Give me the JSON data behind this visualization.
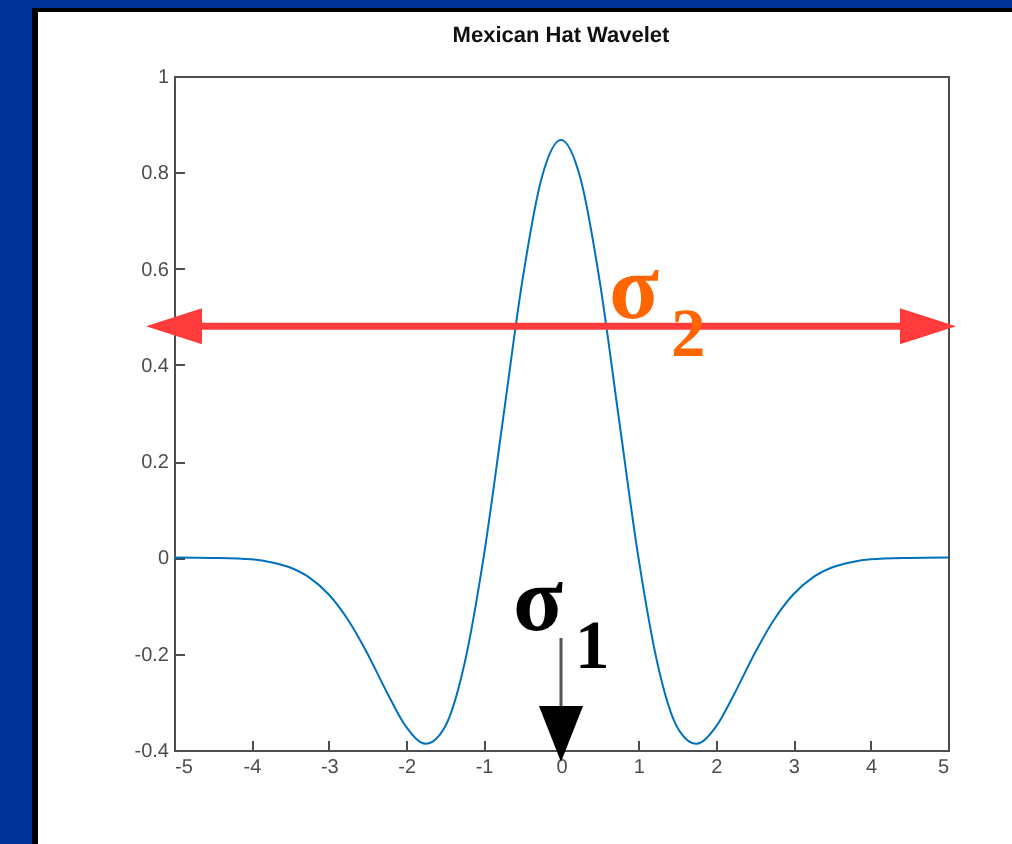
{
  "chart_data": {
    "type": "line",
    "title": "Mexican Hat Wavelet",
    "x": [
      -5,
      -4.5,
      -4,
      -3.75,
      -3.5,
      -3.25,
      -3,
      -2.75,
      -2.5,
      -2.25,
      -2,
      -1.75,
      -1.5,
      -1.25,
      -1,
      -0.75,
      -0.5,
      -0.25,
      0,
      0.25,
      0.5,
      0.75,
      1,
      1.25,
      1.5,
      1.75,
      2,
      2.25,
      2.5,
      2.75,
      3,
      3.25,
      3.5,
      3.75,
      4,
      4.5,
      5
    ],
    "series": [
      {
        "color": "#0072bd",
        "values": [
          0,
          -0.001,
          -0.004,
          -0.01,
          -0.021,
          -0.042,
          -0.077,
          -0.13,
          -0.2,
          -0.28,
          -0.352,
          -0.387,
          -0.352,
          -0.223,
          0,
          0.286,
          0.574,
          0.788,
          0.867,
          0.788,
          0.574,
          0.286,
          0,
          -0.223,
          -0.352,
          -0.387,
          -0.352,
          -0.28,
          -0.2,
          -0.13,
          -0.077,
          -0.042,
          -0.021,
          -0.01,
          -0.004,
          -0.001,
          0
        ]
      }
    ],
    "xlim": [
      -5,
      5
    ],
    "xticks": [
      -5,
      -4,
      -3,
      -2,
      -1,
      0,
      1,
      2,
      3,
      4,
      5
    ],
    "ylim": [
      -0.4,
      1
    ],
    "yticks": [
      -0.4,
      -0.2,
      0,
      0.2,
      0.4,
      0.6,
      0.8,
      1
    ],
    "grid": false,
    "line_style": "solid",
    "marker": "none",
    "ref_lines": [
      {
        "axis": "y",
        "value": 0.48,
        "color": "#ff3b3b",
        "label": "σ$_{2}$"
      }
    ],
    "annotations": [
      "σ$_{1}$"
    ]
  }
}
